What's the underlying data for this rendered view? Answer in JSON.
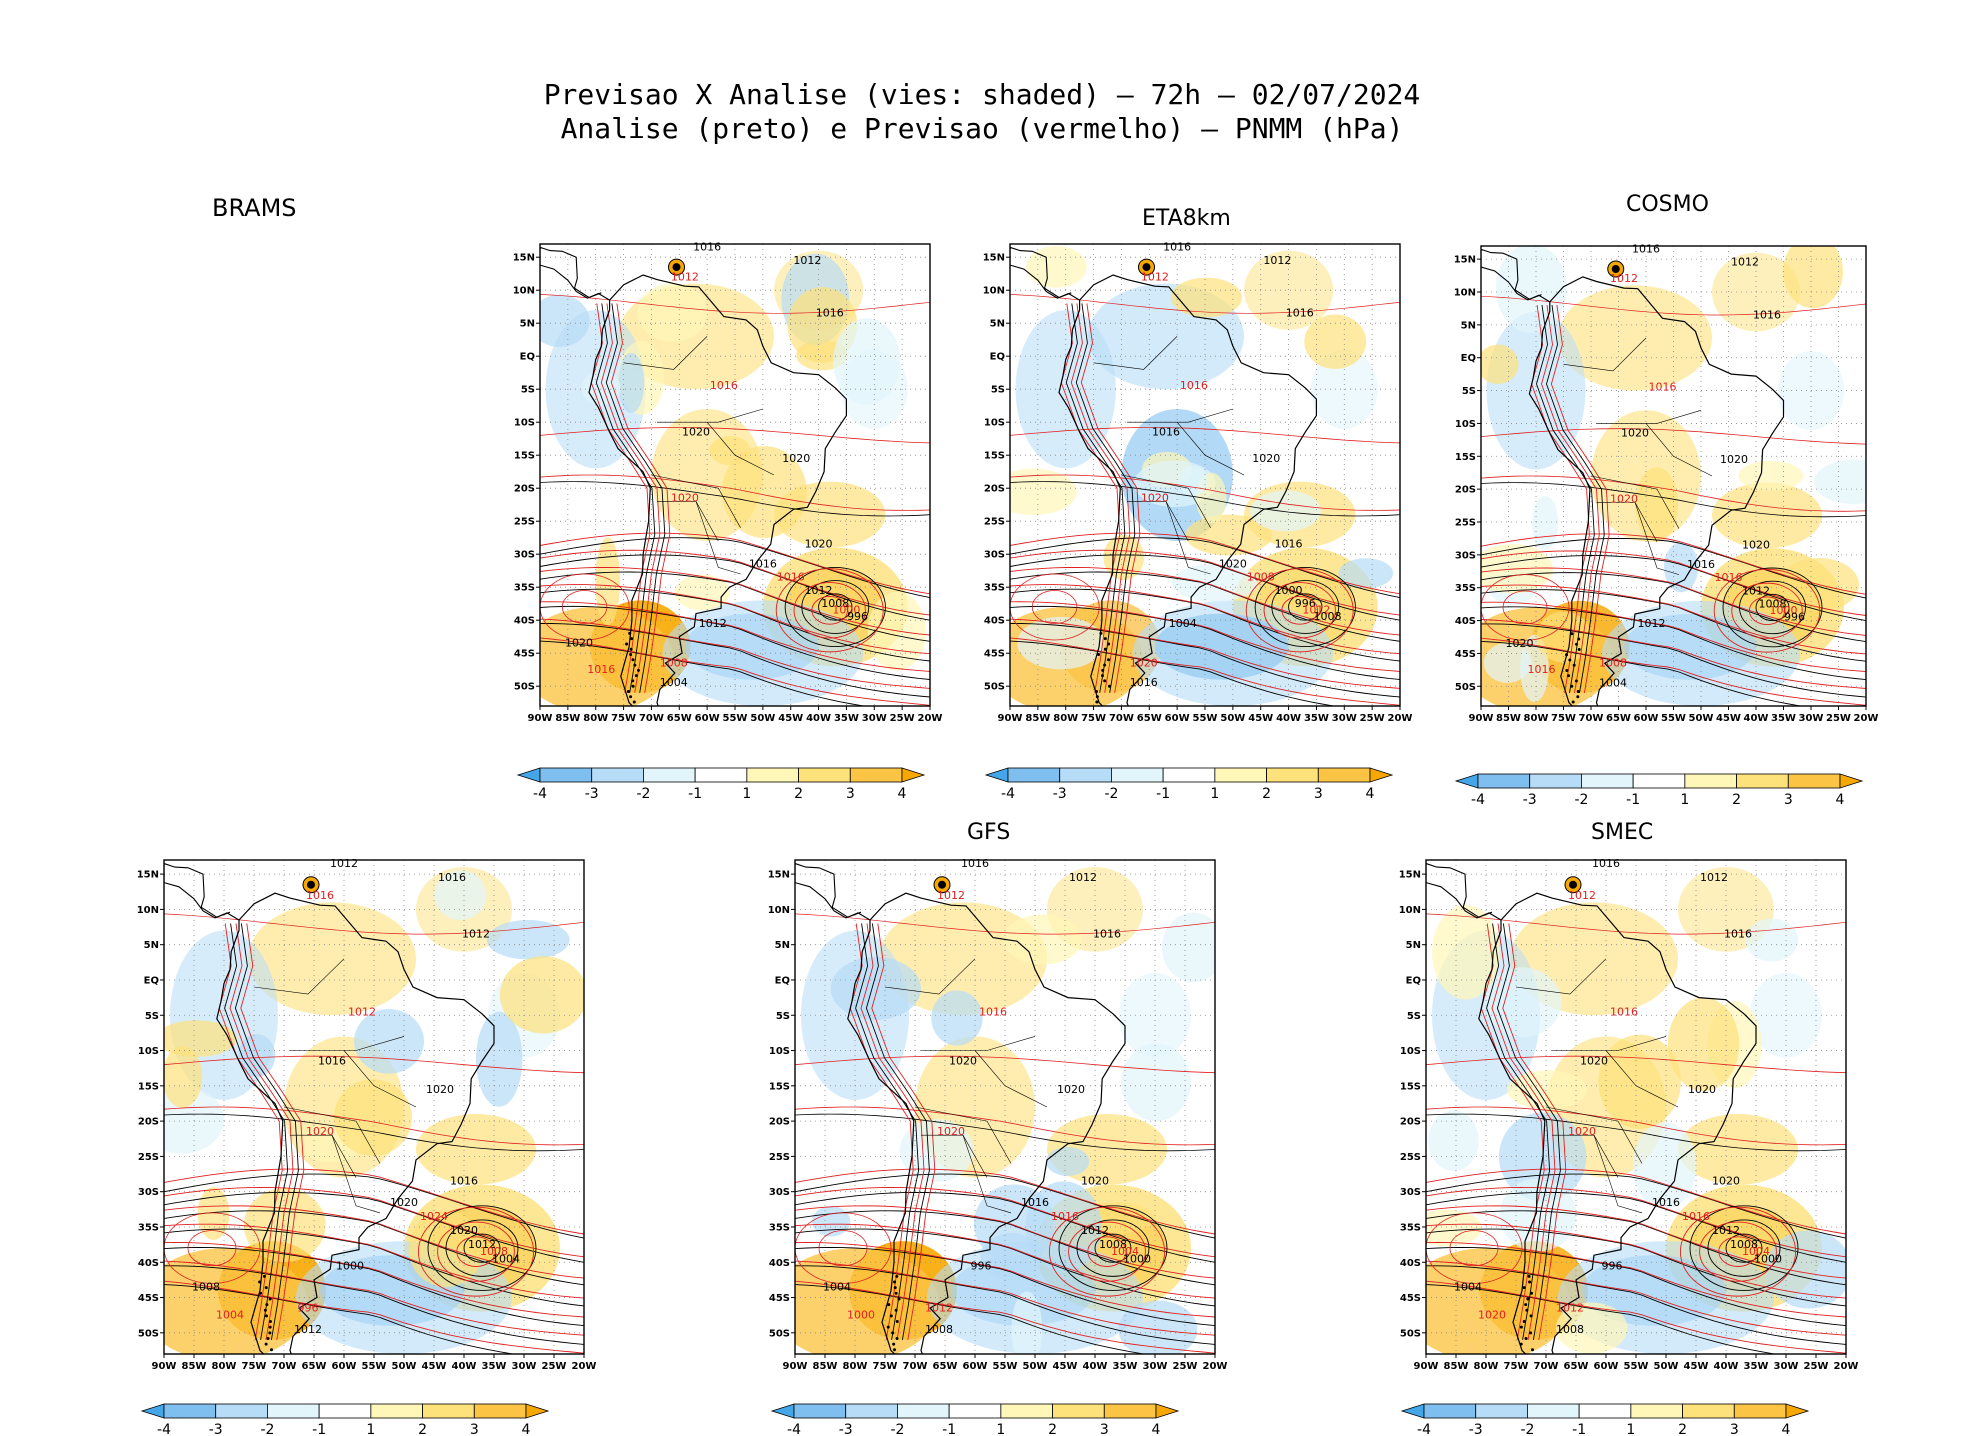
{
  "title_line1": "Previsao X Analise (vies: shaded) — 72h — 02/07/2024",
  "title_line2": "Analise (preto) e Previsao (vermelho) — PNMM (hPa)",
  "lat_ticks": [
    "15N",
    "10N",
    "5N",
    "EQ",
    "5S",
    "10S",
    "15S",
    "20S",
    "25S",
    "30S",
    "35S",
    "40S",
    "45S",
    "50S"
  ],
  "lon_ticks": [
    "90W",
    "85W",
    "80W",
    "75W",
    "70W",
    "65W",
    "60W",
    "55W",
    "50W",
    "45W",
    "40W",
    "35W",
    "30W",
    "25W",
    "20W"
  ],
  "colorbar": {
    "ticks": [
      "-4",
      "-3",
      "-2",
      "-1",
      "1",
      "2",
      "3",
      "4"
    ],
    "colors": [
      "#44a6e8",
      "#7fbff0",
      "#b6dcf7",
      "#e1f5fb",
      "#ffffff",
      "#fff7b8",
      "#fde17a",
      "#fbc445",
      "#f7a800"
    ]
  },
  "contour_colors": {
    "analysis": "#000000",
    "forecast": "#e02020"
  },
  "panels": [
    {
      "key": "brams",
      "name": "BRAMS",
      "labels": [
        "1016",
        "1012",
        "1016",
        "1012",
        "1016",
        "1020",
        "1020",
        "1020",
        "1016",
        "1020",
        "1016",
        "1012",
        "1008",
        "1000",
        "996",
        "1012",
        "1008",
        "1004",
        "1020",
        "1016"
      ]
    },
    {
      "key": "eta",
      "name": "ETA8km",
      "labels": [
        "1016",
        "1012",
        "1016",
        "1012",
        "1016",
        "1016",
        "1020",
        "1020",
        "1020",
        "1016",
        "1008",
        "1000",
        "996",
        "1012",
        "1008",
        "1004",
        "1020",
        "1016"
      ]
    },
    {
      "key": "cosmo",
      "name": "COSMO",
      "labels": [
        "1016",
        "1012",
        "1016",
        "1012",
        "1016",
        "1020",
        "1020",
        "1020",
        "1016",
        "1020",
        "1016",
        "1012",
        "1008",
        "1000",
        "996",
        "1012",
        "1008",
        "1004",
        "1020",
        "1016"
      ]
    },
    {
      "key": "brams2",
      "name": "",
      "labels": [
        "1012",
        "1016",
        "1012",
        "1016",
        "1012",
        "1016",
        "1020",
        "1020",
        "1020",
        "1016",
        "1024",
        "1020",
        "1012",
        "1008",
        "1004",
        "1000",
        "996",
        "1012",
        "1008",
        "1004"
      ]
    },
    {
      "key": "gfs",
      "name": "GFS",
      "labels": [
        "1016",
        "1012",
        "1016",
        "1012",
        "1016",
        "1020",
        "1020",
        "1020",
        "1016",
        "1020",
        "1016",
        "1012",
        "1008",
        "1004",
        "1000",
        "996",
        "1012",
        "1008",
        "1004",
        "1000"
      ]
    },
    {
      "key": "smec",
      "name": "SMEC",
      "labels": [
        "1016",
        "1012",
        "1016",
        "1012",
        "1016",
        "1020",
        "1020",
        "1020",
        "1016",
        "1020",
        "1016",
        "1012",
        "1008",
        "1004",
        "1000",
        "996",
        "1012",
        "1008",
        "1004",
        "1020"
      ]
    }
  ]
}
